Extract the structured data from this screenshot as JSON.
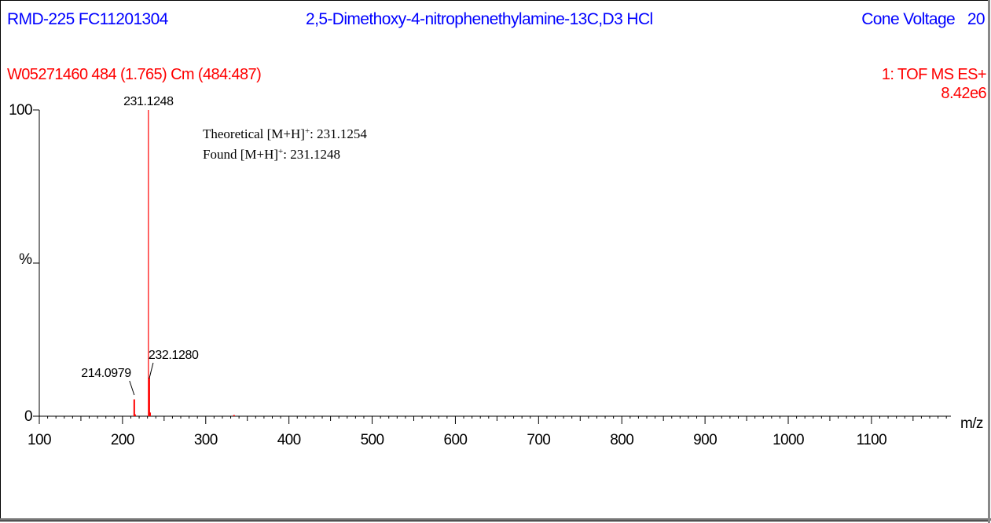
{
  "header": {
    "sample_id": "RMD-225 FC11201304",
    "compound": "2,5-Dimethoxy-4-nitrophenethylamine-13C,D3 HCl",
    "cone_voltage": "Cone Voltage   20",
    "scan_info": "W05271460 484 (1.765) Cm (484:487)",
    "mode": "1: TOF MS ES+",
    "intensity": "8.42e6"
  },
  "annotation": {
    "theoretical": "Theoretical [M+H]+:  231.1254",
    "found": "Found [M+H]+:  231.1248"
  },
  "colors": {
    "header_text": "#0000ff",
    "peak": "#ff0000",
    "axis": "#000000"
  },
  "chart_data": {
    "type": "bar",
    "xlabel": "m/z",
    "ylabel": "%",
    "xlim": [
      100,
      1200
    ],
    "ylim": [
      0,
      100
    ],
    "x_ticks": [
      100,
      200,
      300,
      400,
      500,
      600,
      700,
      800,
      900,
      1000,
      1100
    ],
    "y_ticks": [
      0,
      100
    ],
    "peaks": [
      {
        "mz": 214.0979,
        "intensity": 5.5,
        "label": "214.0979"
      },
      {
        "mz": 215.1,
        "intensity": 0.6,
        "label": ""
      },
      {
        "mz": 231.1248,
        "intensity": 100,
        "label": "231.1248"
      },
      {
        "mz": 232.128,
        "intensity": 12.5,
        "label": "232.1280"
      },
      {
        "mz": 233.13,
        "intensity": 1.2,
        "label": ""
      },
      {
        "mz": 334.0,
        "intensity": 0.4,
        "label": ""
      }
    ]
  }
}
